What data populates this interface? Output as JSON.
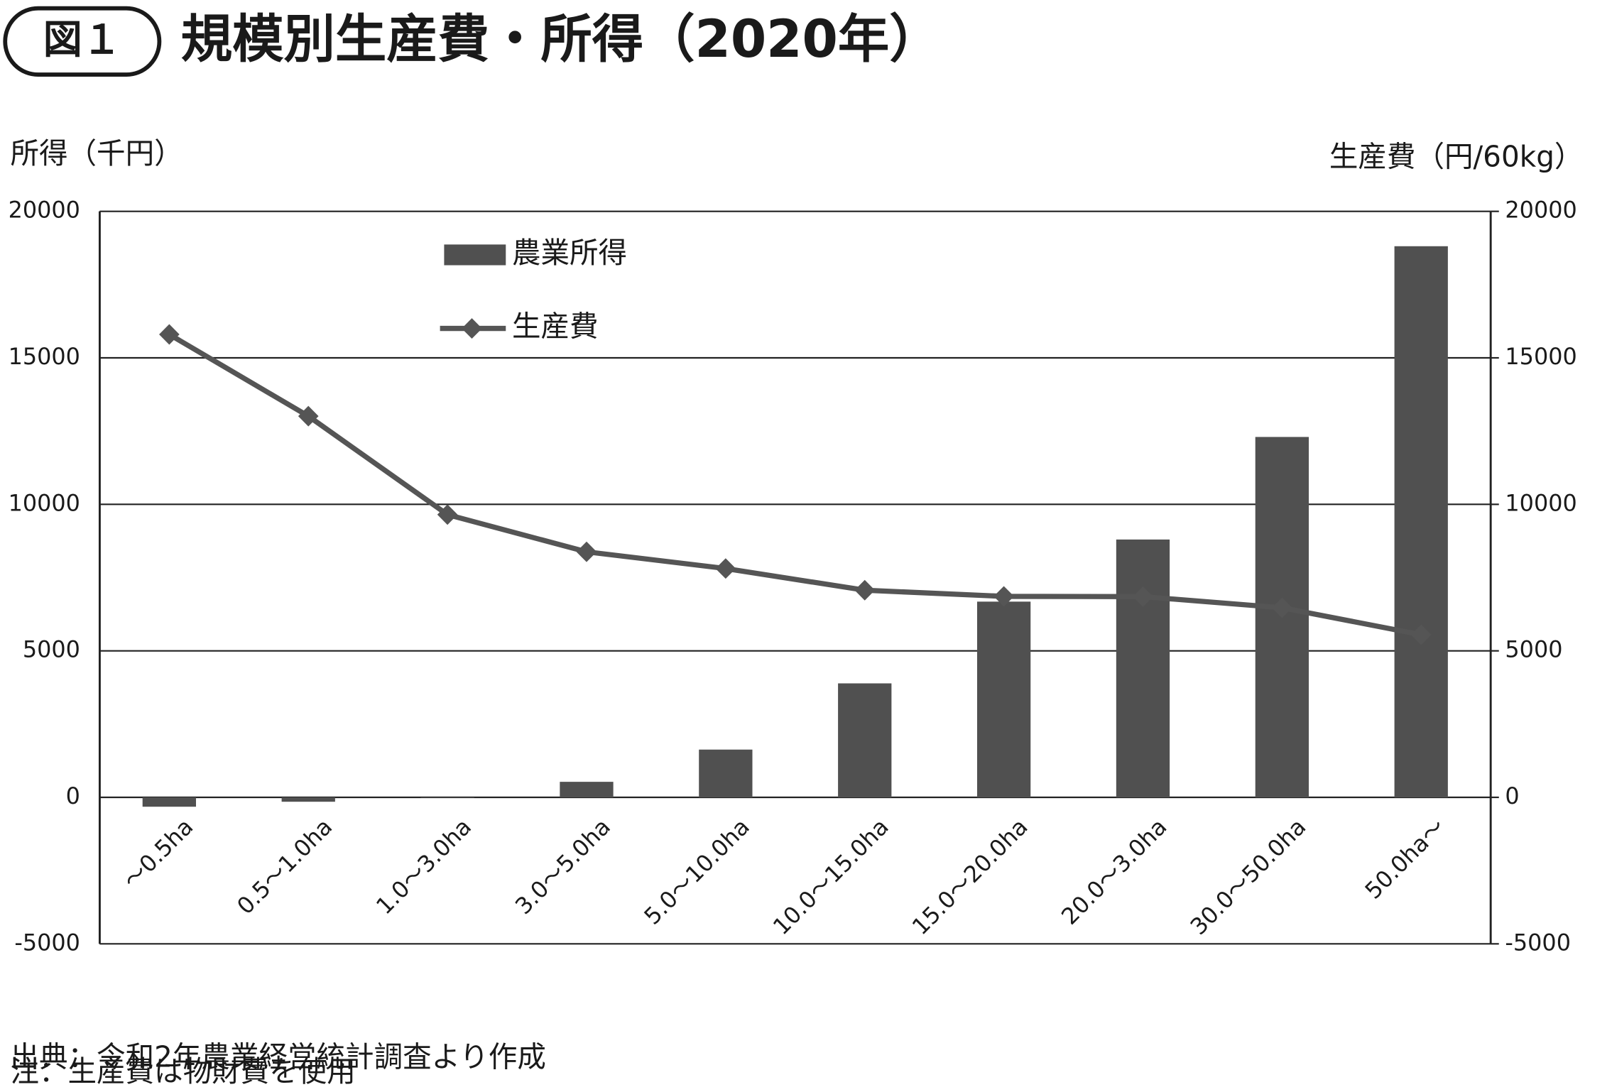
{
  "chart_data": {
    "type": "bar-line",
    "badge": "図１",
    "title": "規模別生産費・所得（2020年）",
    "y_label": "所得（千円）",
    "y2_label": "生産費（円/60kg）",
    "categories": [
      "〜0.5ha",
      "0.5〜1.0ha",
      "1.0〜3.0ha",
      "3.0〜5.0ha",
      "5.0〜10.0ha",
      "10.0〜15.0ha",
      "15.0〜20.0ha",
      "20.0〜3.0ha",
      "30.0〜50.0ha",
      "50.0ha〜"
    ],
    "series": [
      {
        "name": "農業所得",
        "type": "bar",
        "color": "#505050",
        "values": [
          -320,
          -150,
          0,
          530,
          1630,
          3890,
          6680,
          8800,
          12300,
          18810
        ]
      },
      {
        "name": "生産費",
        "type": "line",
        "axis": "y2",
        "color": "#555555",
        "values": [
          15800,
          13010,
          9650,
          8380,
          7810,
          7070,
          6860,
          6850,
          6470,
          5550
        ]
      }
    ],
    "ylim": [
      -5000,
      20000
    ],
    "yticks": [
      -5000,
      0,
      5000,
      10000,
      15000,
      20000
    ],
    "y2lim": [
      -5000,
      20000
    ],
    "y2ticks": [
      -5000,
      0,
      5000,
      10000,
      15000,
      20000
    ],
    "grid": true,
    "notes": [
      "出典：令和2年農業経営統計調査より作成",
      "注：生産費は物財費を使用"
    ]
  }
}
